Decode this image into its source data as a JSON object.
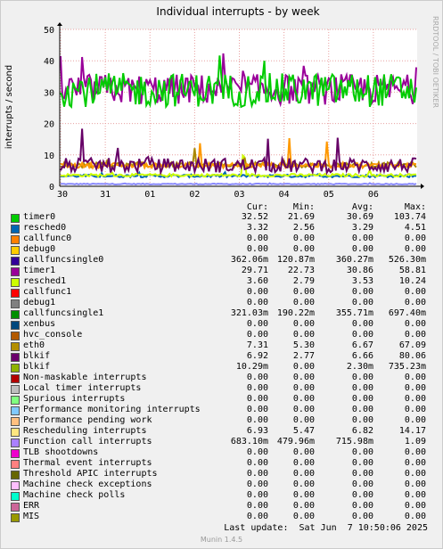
{
  "chart_data": {
    "type": "line",
    "title": "Individual interrupts - by week",
    "ylabel": "interrupts / second",
    "xlabel": "",
    "ylim": [
      0,
      50
    ],
    "yticks": [
      0,
      10,
      20,
      30,
      40,
      50
    ],
    "x_ticks": [
      "30",
      "31",
      "01",
      "02",
      "03",
      "04",
      "05",
      "06"
    ],
    "grid": true,
    "series": [
      {
        "name": "timer0",
        "color": "#00cc00",
        "cur": 32.52,
        "min": 21.69,
        "avg": 30.69,
        "max": 103.74
      },
      {
        "name": "timer1",
        "color": "#990099",
        "cur": 29.71,
        "min": 22.73,
        "avg": 30.86,
        "max": 58.81
      },
      {
        "name": "blkif",
        "color": "#660066",
        "cur": 6.92,
        "min": 2.77,
        "avg": 6.66,
        "max": 80.06
      },
      {
        "name": "eth0",
        "color": "#ff9900",
        "cur": 7.31,
        "min": 5.3,
        "avg": 6.67,
        "max": 67.09
      },
      {
        "name": "Rescheduling interrupts",
        "color": "#aa8800",
        "cur": 6.93,
        "min": 5.47,
        "avg": 6.82,
        "max": 14.17
      },
      {
        "name": "resched1",
        "color": "#ccff00",
        "cur": 3.6,
        "min": 2.79,
        "avg": 3.53,
        "max": 10.24
      },
      {
        "name": "resched0",
        "color": "#0066b3",
        "cur": 3.32,
        "min": 2.56,
        "avg": 3.29,
        "max": 4.51
      },
      {
        "name": "Function call interrupts",
        "color": "#8888ff",
        "cur": 0.683,
        "min": 0.48,
        "avg": 0.716,
        "max": 1.09
      }
    ]
  },
  "side_label": "RRDTOOL / TOBI OETIKER",
  "headers": {
    "cur": "Cur:",
    "min": "Min:",
    "avg": "Avg:",
    "max": "Max:"
  },
  "legend": [
    {
      "name": "timer0",
      "color": "#00cc00",
      "cur": "32.52",
      "min": "21.69",
      "avg": "30.69",
      "max": "103.74"
    },
    {
      "name": "resched0",
      "color": "#0066b3",
      "cur": "3.32",
      "min": "2.56",
      "avg": "3.29",
      "max": "4.51"
    },
    {
      "name": "callfunc0",
      "color": "#ff8000",
      "cur": "0.00",
      "min": "0.00",
      "avg": "0.00",
      "max": "0.00"
    },
    {
      "name": "debug0",
      "color": "#ffcc00",
      "cur": "0.00",
      "min": "0.00",
      "avg": "0.00",
      "max": "0.00"
    },
    {
      "name": "callfuncsingle0",
      "color": "#330099",
      "cur": "362.06m",
      "min": "120.87m",
      "avg": "360.27m",
      "max": "526.30m"
    },
    {
      "name": "timer1",
      "color": "#990099",
      "cur": "29.71",
      "min": "22.73",
      "avg": "30.86",
      "max": "58.81"
    },
    {
      "name": "resched1",
      "color": "#ccff00",
      "cur": "3.60",
      "min": "2.79",
      "avg": "3.53",
      "max": "10.24"
    },
    {
      "name": "callfunc1",
      "color": "#ff0000",
      "cur": "0.00",
      "min": "0.00",
      "avg": "0.00",
      "max": "0.00"
    },
    {
      "name": "debug1",
      "color": "#808080",
      "cur": "0.00",
      "min": "0.00",
      "avg": "0.00",
      "max": "0.00"
    },
    {
      "name": "callfuncsingle1",
      "color": "#008f00",
      "cur": "321.03m",
      "min": "190.22m",
      "avg": "355.71m",
      "max": "697.40m"
    },
    {
      "name": "xenbus",
      "color": "#00487d",
      "cur": "0.00",
      "min": "0.00",
      "avg": "0.00",
      "max": "0.00"
    },
    {
      "name": "hvc_console",
      "color": "#b35a00",
      "cur": "0.00",
      "min": "0.00",
      "avg": "0.00",
      "max": "0.00"
    },
    {
      "name": "eth0",
      "color": "#b38f00",
      "cur": "7.31",
      "min": "5.30",
      "avg": "6.67",
      "max": "67.09"
    },
    {
      "name": "blkif",
      "color": "#6b006b",
      "cur": "6.92",
      "min": "2.77",
      "avg": "6.66",
      "max": "80.06"
    },
    {
      "name": "blkif",
      "color": "#8fb300",
      "cur": "10.29m",
      "min": "0.00",
      "avg": "2.30m",
      "max": "735.23m"
    },
    {
      "name": "Non-maskable interrupts",
      "color": "#b30000",
      "cur": "0.00",
      "min": "0.00",
      "avg": "0.00",
      "max": "0.00"
    },
    {
      "name": "Local timer interrupts",
      "color": "#bebebe",
      "cur": "0.00",
      "min": "0.00",
      "avg": "0.00",
      "max": "0.00"
    },
    {
      "name": "Spurious interrupts",
      "color": "#80ff80",
      "cur": "0.00",
      "min": "0.00",
      "avg": "0.00",
      "max": "0.00"
    },
    {
      "name": "Performance monitoring interrupts",
      "color": "#80c9ff",
      "cur": "0.00",
      "min": "0.00",
      "avg": "0.00",
      "max": "0.00"
    },
    {
      "name": "Performance pending work",
      "color": "#ffc080",
      "cur": "0.00",
      "min": "0.00",
      "avg": "0.00",
      "max": "0.00"
    },
    {
      "name": "Rescheduling interrupts",
      "color": "#ffe680",
      "cur": "6.93",
      "min": "5.47",
      "avg": "6.82",
      "max": "14.17"
    },
    {
      "name": "Function call interrupts",
      "color": "#aa80ff",
      "cur": "683.10m",
      "min": "479.96m",
      "avg": "715.98m",
      "max": "1.09"
    },
    {
      "name": "TLB shootdowns",
      "color": "#ee00cc",
      "cur": "0.00",
      "min": "0.00",
      "avg": "0.00",
      "max": "0.00"
    },
    {
      "name": "Thermal event interrupts",
      "color": "#ff8080",
      "cur": "0.00",
      "min": "0.00",
      "avg": "0.00",
      "max": "0.00"
    },
    {
      "name": "Threshold APIC interrupts",
      "color": "#666600",
      "cur": "0.00",
      "min": "0.00",
      "avg": "0.00",
      "max": "0.00"
    },
    {
      "name": "Machine check exceptions",
      "color": "#ffbfff",
      "cur": "0.00",
      "min": "0.00",
      "avg": "0.00",
      "max": "0.00"
    },
    {
      "name": "Machine check polls",
      "color": "#00ffcc",
      "cur": "0.00",
      "min": "0.00",
      "avg": "0.00",
      "max": "0.00"
    },
    {
      "name": "ERR",
      "color": "#cc6699",
      "cur": "0.00",
      "min": "0.00",
      "avg": "0.00",
      "max": "0.00"
    },
    {
      "name": "MIS",
      "color": "#999900",
      "cur": "0.00",
      "min": "0.00",
      "avg": "0.00",
      "max": "0.00"
    }
  ],
  "footer": "Last update:  Sat Jun  7 10:50:06 2025",
  "munin_version": "Munin 1.4.5"
}
